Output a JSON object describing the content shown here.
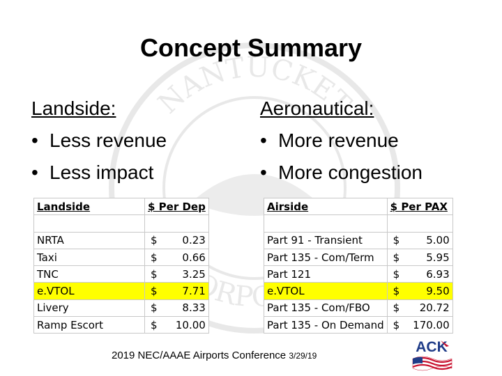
{
  "slide": {
    "title": "Concept Summary"
  },
  "left_column": {
    "heading": "Landside:",
    "bullets": [
      "Less revenue",
      "Less impact"
    ]
  },
  "right_column": {
    "heading": "Aeronautical:",
    "bullets": [
      "More revenue",
      "More congestion"
    ]
  },
  "bullet_char": "•",
  "landside_table": {
    "headers": [
      "Landside",
      "$ Per Dep"
    ],
    "currency": "$",
    "rows": [
      {
        "name": "NRTA",
        "value": "0.23"
      },
      {
        "name": "Taxi",
        "value": "0.66"
      },
      {
        "name": "TNC",
        "value": "3.25"
      },
      {
        "name": "e.VTOL",
        "value": "7.71"
      },
      {
        "name": "Livery",
        "value": "8.33"
      },
      {
        "name": "Ramp Escort",
        "value": "10.00"
      }
    ],
    "highlight_row": "e.VTOL",
    "highlight_color": "#ffff00"
  },
  "airside_table": {
    "headers": [
      "Airside",
      "$ Per PAX"
    ],
    "currency": "$",
    "rows": [
      {
        "name": "Part 91 - Transient",
        "value": "5.00"
      },
      {
        "name": "Part 135 - Com/Term",
        "value": "5.95"
      },
      {
        "name": "Part 121",
        "value": "6.93"
      },
      {
        "name": "e.VTOL",
        "value": "9.50"
      },
      {
        "name": "Part 135 - Com/FBO",
        "value": "20.72"
      },
      {
        "name": "Part 135 - On Demand",
        "value": "170.00"
      }
    ],
    "highlight_row": "e.VTOL",
    "highlight_color": "#ffff00"
  },
  "footer": {
    "conference": "2019 NEC/AAAE Airports Conference",
    "date": "3/29/19"
  },
  "logo": {
    "text": "ACK",
    "colors": [
      "#1f3c88",
      "#c8102e"
    ]
  },
  "watermark": {
    "text": "NANTUCKET INCORPORATED"
  }
}
